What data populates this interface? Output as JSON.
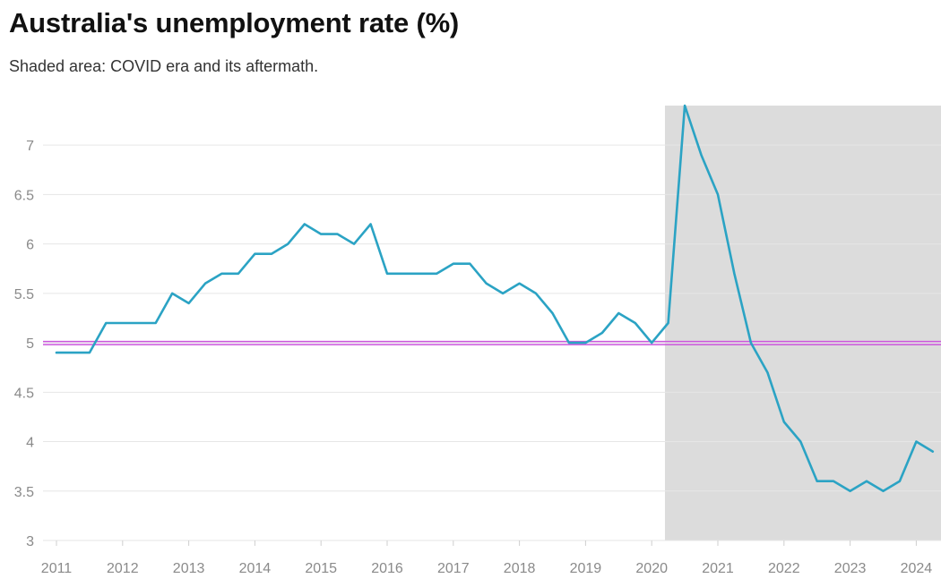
{
  "header": {
    "title": "Australia's unemployment rate (%)",
    "subtitle": "Shaded area: COVID era and its aftermath."
  },
  "chart_data": {
    "type": "line",
    "title": "Australia's unemployment rate (%)",
    "subtitle": "Shaded area: COVID era and its aftermath.",
    "xlabel": "",
    "ylabel": "",
    "ylim": [
      3,
      7.4
    ],
    "xlim": [
      2011,
      2024.25
    ],
    "yticks": [
      3,
      3.5,
      4,
      4.5,
      5,
      5.5,
      6,
      6.5,
      7
    ],
    "ytick_labels": [
      "3",
      "3.5",
      "4",
      "4.5",
      "5",
      "5.5",
      "6",
      "6.5",
      "7"
    ],
    "xticks": [
      2011,
      2012,
      2013,
      2014,
      2015,
      2016,
      2017,
      2018,
      2019,
      2020,
      2021,
      2022,
      2023,
      2024
    ],
    "xtick_labels": [
      "2011",
      "2012",
      "2013",
      "2014",
      "2015",
      "2016",
      "2017",
      "2018",
      "2019",
      "2020",
      "2021",
      "2022",
      "2023",
      "2024"
    ],
    "grid": "horizontal",
    "line_color": "#2ba3c4",
    "reference_line": {
      "y": 5.0,
      "color": "#cc55dd"
    },
    "shaded_region": {
      "x_start": 2020.2,
      "x_end": 2024.25,
      "color": "#dcdcdc"
    },
    "series": [
      {
        "x": [
          2011.0,
          2011.25,
          2011.5,
          2011.75,
          2012.0,
          2012.25,
          2012.5,
          2012.75,
          2013.0,
          2013.25,
          2013.5,
          2013.75,
          2014.0,
          2014.25,
          2014.5,
          2014.75,
          2015.0,
          2015.25,
          2015.5,
          2015.75,
          2016.0,
          2016.25,
          2016.5,
          2016.75,
          2017.0,
          2017.25,
          2017.5,
          2017.75,
          2018.0,
          2018.25,
          2018.5,
          2018.75,
          2019.0,
          2019.25,
          2019.5,
          2019.75,
          2020.0,
          2020.25,
          2020.5,
          2020.75,
          2021.0,
          2021.25,
          2021.5,
          2021.75,
          2022.0,
          2022.25,
          2022.5,
          2022.75,
          2023.0,
          2023.25,
          2023.5,
          2023.75,
          2024.0,
          2024.25
        ],
        "values": [
          4.9,
          4.9,
          4.9,
          5.2,
          5.2,
          5.2,
          5.2,
          5.5,
          5.4,
          5.6,
          5.7,
          5.7,
          5.9,
          5.9,
          6.0,
          6.2,
          6.1,
          6.1,
          6.0,
          6.2,
          5.7,
          5.7,
          5.7,
          5.7,
          5.8,
          5.8,
          5.6,
          5.5,
          5.6,
          5.5,
          5.3,
          5.0,
          5.0,
          5.1,
          5.3,
          5.2,
          5.0,
          5.2,
          7.4,
          6.9,
          6.5,
          5.7,
          5.0,
          4.7,
          4.2,
          4.0,
          3.6,
          3.6,
          3.5,
          3.6,
          3.5,
          3.6,
          4.0,
          3.9
        ]
      }
    ]
  }
}
